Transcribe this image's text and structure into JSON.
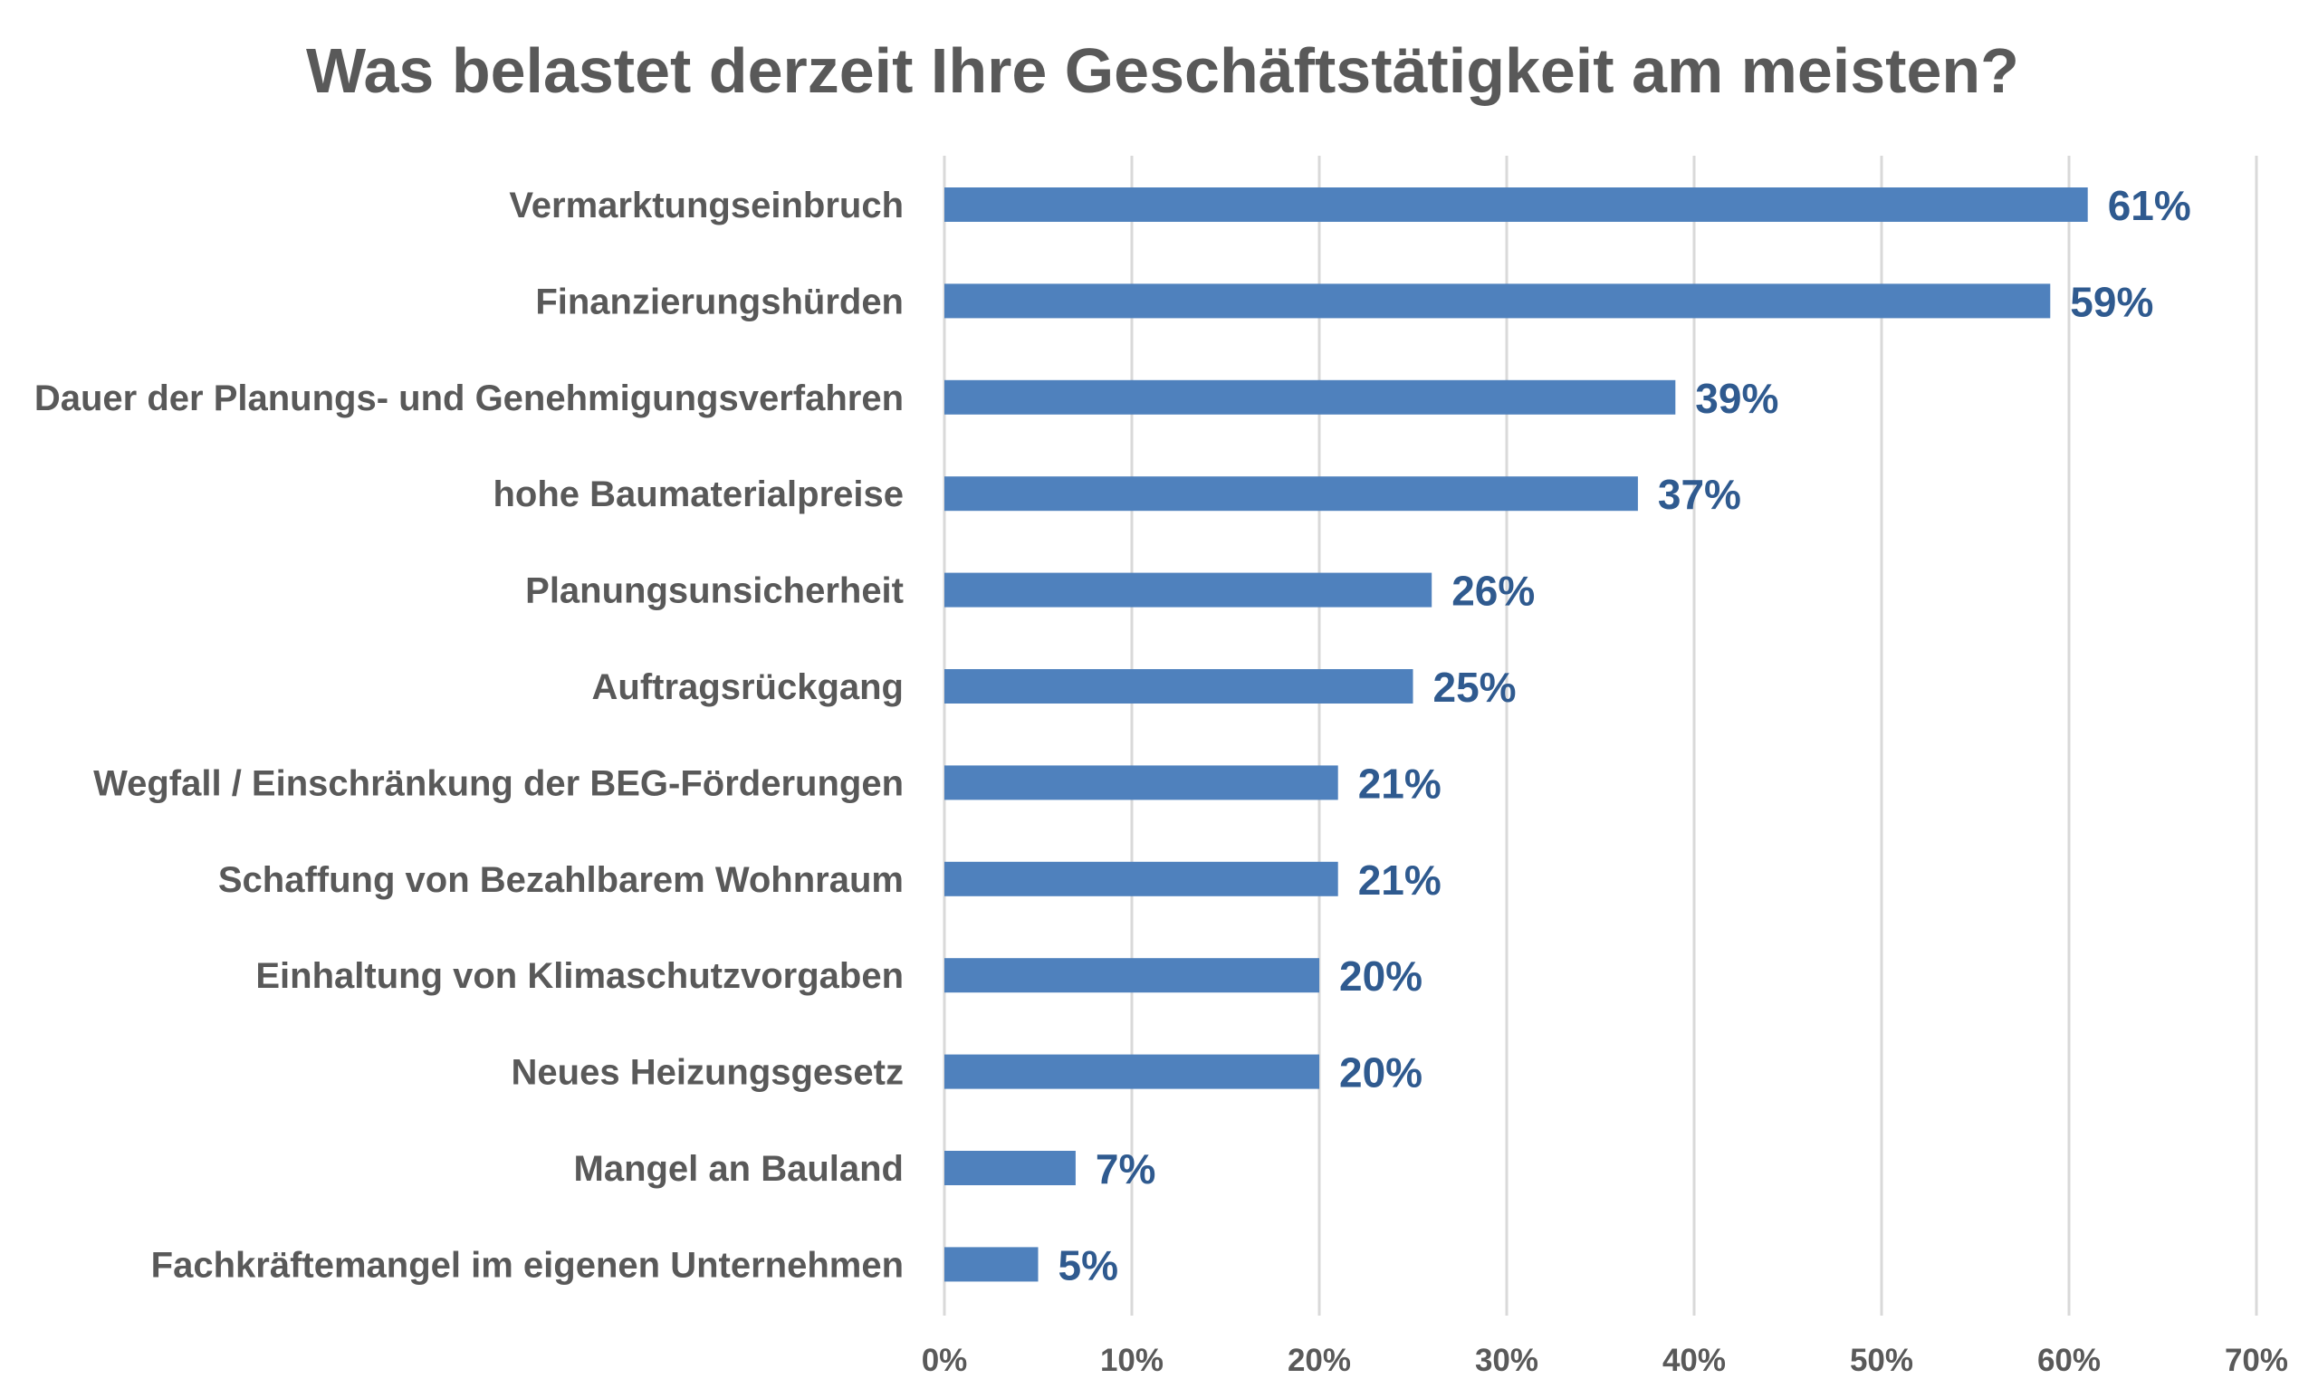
{
  "chart_data": {
    "type": "bar",
    "orientation": "horizontal",
    "title": "Was belastet derzeit Ihre Geschäftstätigkeit am meisten?",
    "categories": [
      "Vermarktungseinbruch",
      "Finanzierungshürden",
      "Dauer der Planungs- und Genehmigungsverfahren",
      "hohe Baumaterialpreise",
      "Planungsunsicherheit",
      "Auftragsrückgang",
      "Wegfall / Einschränkung der BEG-Förderungen",
      "Schaffung von Bezahlbarem Wohnraum",
      "Einhaltung von Klimaschutzvorgaben",
      "Neues Heizungsgesetz",
      "Mangel an Bauland",
      "Fachkräftemangel im eigenen Unternehmen"
    ],
    "values": [
      61,
      59,
      39,
      37,
      26,
      25,
      21,
      21,
      20,
      20,
      7,
      5
    ],
    "data_labels": [
      "61%",
      "59%",
      "39%",
      "37%",
      "26%",
      "25%",
      "21%",
      "21%",
      "20%",
      "20%",
      "7%",
      "5%"
    ],
    "x_ticks": [
      "0%",
      "10%",
      "20%",
      "30%",
      "40%",
      "50%",
      "60%",
      "70%"
    ],
    "xlim": [
      0,
      70
    ],
    "grid": true,
    "legend": "none",
    "colors": {
      "bar": "#4f81bd",
      "data_label": "#2f5a8f",
      "text": "#595959",
      "grid": "#d9d9d9"
    }
  }
}
